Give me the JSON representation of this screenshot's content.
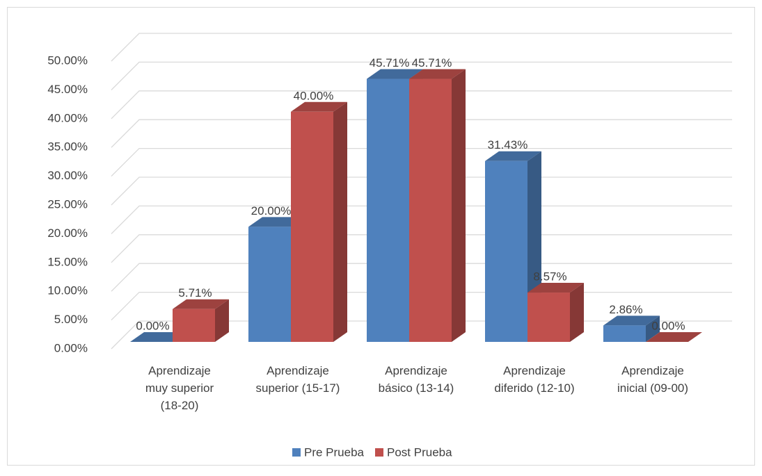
{
  "chart_data": {
    "type": "bar3d",
    "categories": [
      "Aprendizaje muy superior (18-20)",
      "Aprendizaje superior (15-17)",
      "Aprendizaje básico (13-14)",
      "Aprendizaje diferido (12-10)",
      "Aprendizaje inicial (09-00)"
    ],
    "series": [
      {
        "name": "Pre Prueba",
        "color": "#4f81bd",
        "values": [
          0,
          20,
          45.71,
          31.43,
          2.86
        ],
        "value_labels": [
          "0.00%",
          "20.00%",
          "45.71%",
          "31.43%",
          "2.86%"
        ]
      },
      {
        "name": "Post Prueba",
        "color": "#c0504d",
        "values": [
          5.71,
          40,
          45.71,
          8.57,
          0
        ],
        "value_labels": [
          "5.71%",
          "40.00%",
          "45.71%",
          "8.57%",
          "0.00%"
        ]
      }
    ],
    "ylim": [
      0,
      50
    ],
    "yticks": [
      {
        "value": 0,
        "label": "0.00%"
      },
      {
        "value": 5,
        "label": "5.00%"
      },
      {
        "value": 10,
        "label": "10.00%"
      },
      {
        "value": 15,
        "label": "15.00%"
      },
      {
        "value": 20,
        "label": "20.00%"
      },
      {
        "value": 25,
        "label": "25.00%"
      },
      {
        "value": 30,
        "label": "30.00%"
      },
      {
        "value": 35,
        "label": "35.00%"
      },
      {
        "value": 40,
        "label": "40.00%"
      },
      {
        "value": 45,
        "label": "45.00%"
      },
      {
        "value": 50,
        "label": "50.00%"
      }
    ],
    "grid": true,
    "legend": "bottom"
  }
}
